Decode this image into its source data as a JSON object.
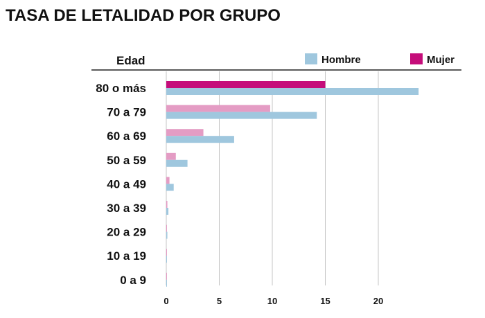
{
  "chart_data": {
    "type": "bar",
    "orientation": "horizontal",
    "title": "TASA DE LETALIDAD POR GRUPO",
    "ylabel": "Edad",
    "xlabel": "",
    "categories": [
      "80 o más",
      "70 a 79",
      "60 a 69",
      "50 a 59",
      "40 a 49",
      "30 a 39",
      "20 a 29",
      "10 a 19",
      "0 a 9"
    ],
    "series": [
      {
        "name": "Hombre",
        "color": "#9fc7de",
        "values": [
          23.8,
          14.2,
          6.4,
          2.0,
          0.7,
          0.2,
          0.1,
          0.05,
          0.05
        ]
      },
      {
        "name": "Mujer",
        "color": "#c50d7a",
        "values": [
          15.0,
          9.8,
          3.5,
          0.9,
          0.3,
          0.1,
          0.05,
          0.05,
          0.05
        ]
      }
    ],
    "highlight_color": "#c50d7a",
    "faded_color": "#e49cc4",
    "xlim": [
      0,
      25
    ],
    "xticks": [
      0,
      5,
      10,
      15,
      20
    ],
    "grid": true,
    "legend": "top-right"
  }
}
